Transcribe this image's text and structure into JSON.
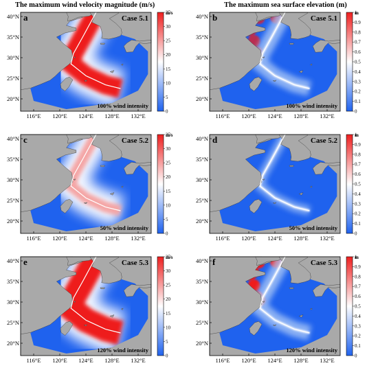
{
  "titles": {
    "left": "The maximum wind velocity magnitude (m/s)",
    "right": "The maximum sea surface elevation (m)"
  },
  "axis": {
    "lat_ticks": [
      "20°N",
      "25°N",
      "30°N",
      "35°N",
      "40°N"
    ],
    "lon_ticks": [
      "116°E",
      "120°E",
      "124°E",
      "128°E",
      "132°E"
    ]
  },
  "colorbars": {
    "wind": {
      "unit": "m/s",
      "ticks": [
        "0",
        "5",
        "10",
        "15",
        "20",
        "25",
        "30",
        "35"
      ],
      "range": [
        0,
        35
      ],
      "colors": [
        "#1f62ee",
        "#ffffff",
        "#ee1f1f"
      ]
    },
    "elev": {
      "unit": "m",
      "ticks": [
        "0",
        "0.1",
        "0.2",
        "0.3",
        "0.4",
        "0.5",
        "0.6",
        "0.7",
        "0.8",
        "0.9",
        "1"
      ],
      "range": [
        0,
        1
      ],
      "colors": [
        "#1f62ee",
        "#ffffff",
        "#ee1f1f"
      ]
    }
  },
  "land_color": "#a9a9a9",
  "panels": [
    {
      "letter": "a",
      "case": "Case 5.1",
      "intensity": "100% wind intensity",
      "variable": "wind"
    },
    {
      "letter": "b",
      "case": "Case 5.1",
      "intensity": "100% wind intensity",
      "variable": "elevation"
    },
    {
      "letter": "c",
      "case": "Case 5.2",
      "intensity": "50% wind intensity",
      "variable": "wind"
    },
    {
      "letter": "d",
      "case": "Case 5.2",
      "intensity": "50% wind intensity",
      "variable": "elevation"
    },
    {
      "letter": "e",
      "case": "Case 5.3",
      "intensity": "120% wind intensity",
      "variable": "wind"
    },
    {
      "letter": "f",
      "case": "Case 5.3",
      "intensity": "120% wind intensity",
      "variable": "elevation"
    }
  ]
}
